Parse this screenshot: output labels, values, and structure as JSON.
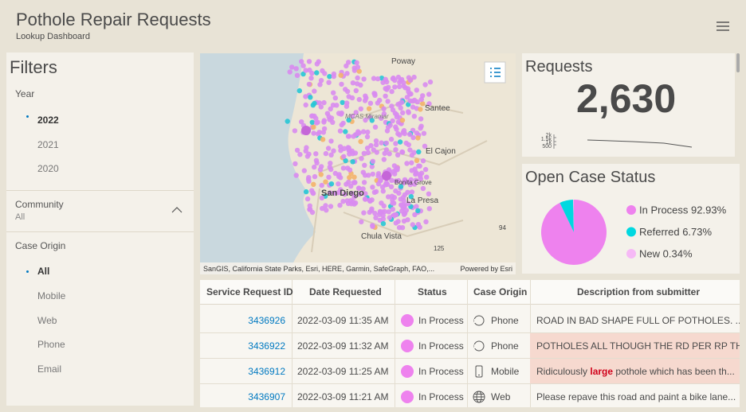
{
  "header": {
    "title": "Pothole Repair Requests",
    "subtitle": "Lookup Dashboard"
  },
  "filters": {
    "title": "Filters",
    "year": {
      "label": "Year",
      "options": [
        "2022",
        "2021",
        "2020"
      ]
    },
    "community": {
      "label": "Community",
      "value": "All"
    },
    "case_origin": {
      "label": "Case Origin",
      "options": [
        "All",
        "Mobile",
        "Web",
        "Phone",
        "Email"
      ]
    }
  },
  "map": {
    "places": [
      "Poway",
      "Santee",
      "MCAS Miramar",
      "El Cajon",
      "Bonita Grove",
      "San Diego",
      "La Presa",
      "Chula Vista",
      "125",
      "94"
    ],
    "attribution": "SanGIS, California State Parks, Esri, HERE, Garmin, SafeGraph, FAO,...",
    "powered_by": "Powered by Esri"
  },
  "requests": {
    "title": "Requests",
    "count": "2,630",
    "axis_labels": [
      "2k",
      "1.5k",
      "1k",
      "500"
    ]
  },
  "open_case_status": {
    "type": "pie",
    "title": "Open Case Status",
    "categories": [
      "In Process",
      "Referred",
      "New"
    ],
    "values": [
      92.93,
      6.73,
      0.34
    ],
    "value_labels": [
      "92.93%",
      "6.73%",
      "0.34%"
    ],
    "colors": [
      "#ee82ee",
      "#00d8e0",
      "#f6b9f6"
    ]
  },
  "table": {
    "columns": [
      "Service Request ID",
      "Date Requested",
      "Status",
      "Case Origin",
      "Description from submitter"
    ],
    "rows": [
      [
        "3436926",
        "2022-03-09 11:35 AM",
        "In Process",
        "Phone",
        "ROAD IN BAD SHAPE FULL OF POTHOLES. ..."
      ],
      [
        "3436922",
        "2022-03-09 11:32 AM",
        "In Process",
        "Phone",
        "POTHOLES ALL THOUGH THE RD PER RP TH..."
      ],
      [
        "3436912",
        "2022-03-09 11:25 AM",
        "In Process",
        "Mobile",
        [
          "Ridiculously ",
          "large",
          " pothole which has been th..."
        ]
      ],
      [
        "3436907",
        "2022-03-09 11:21 AM",
        "In Process",
        "Web",
        "Please repave this road and paint a bike lane..."
      ]
    ]
  }
}
